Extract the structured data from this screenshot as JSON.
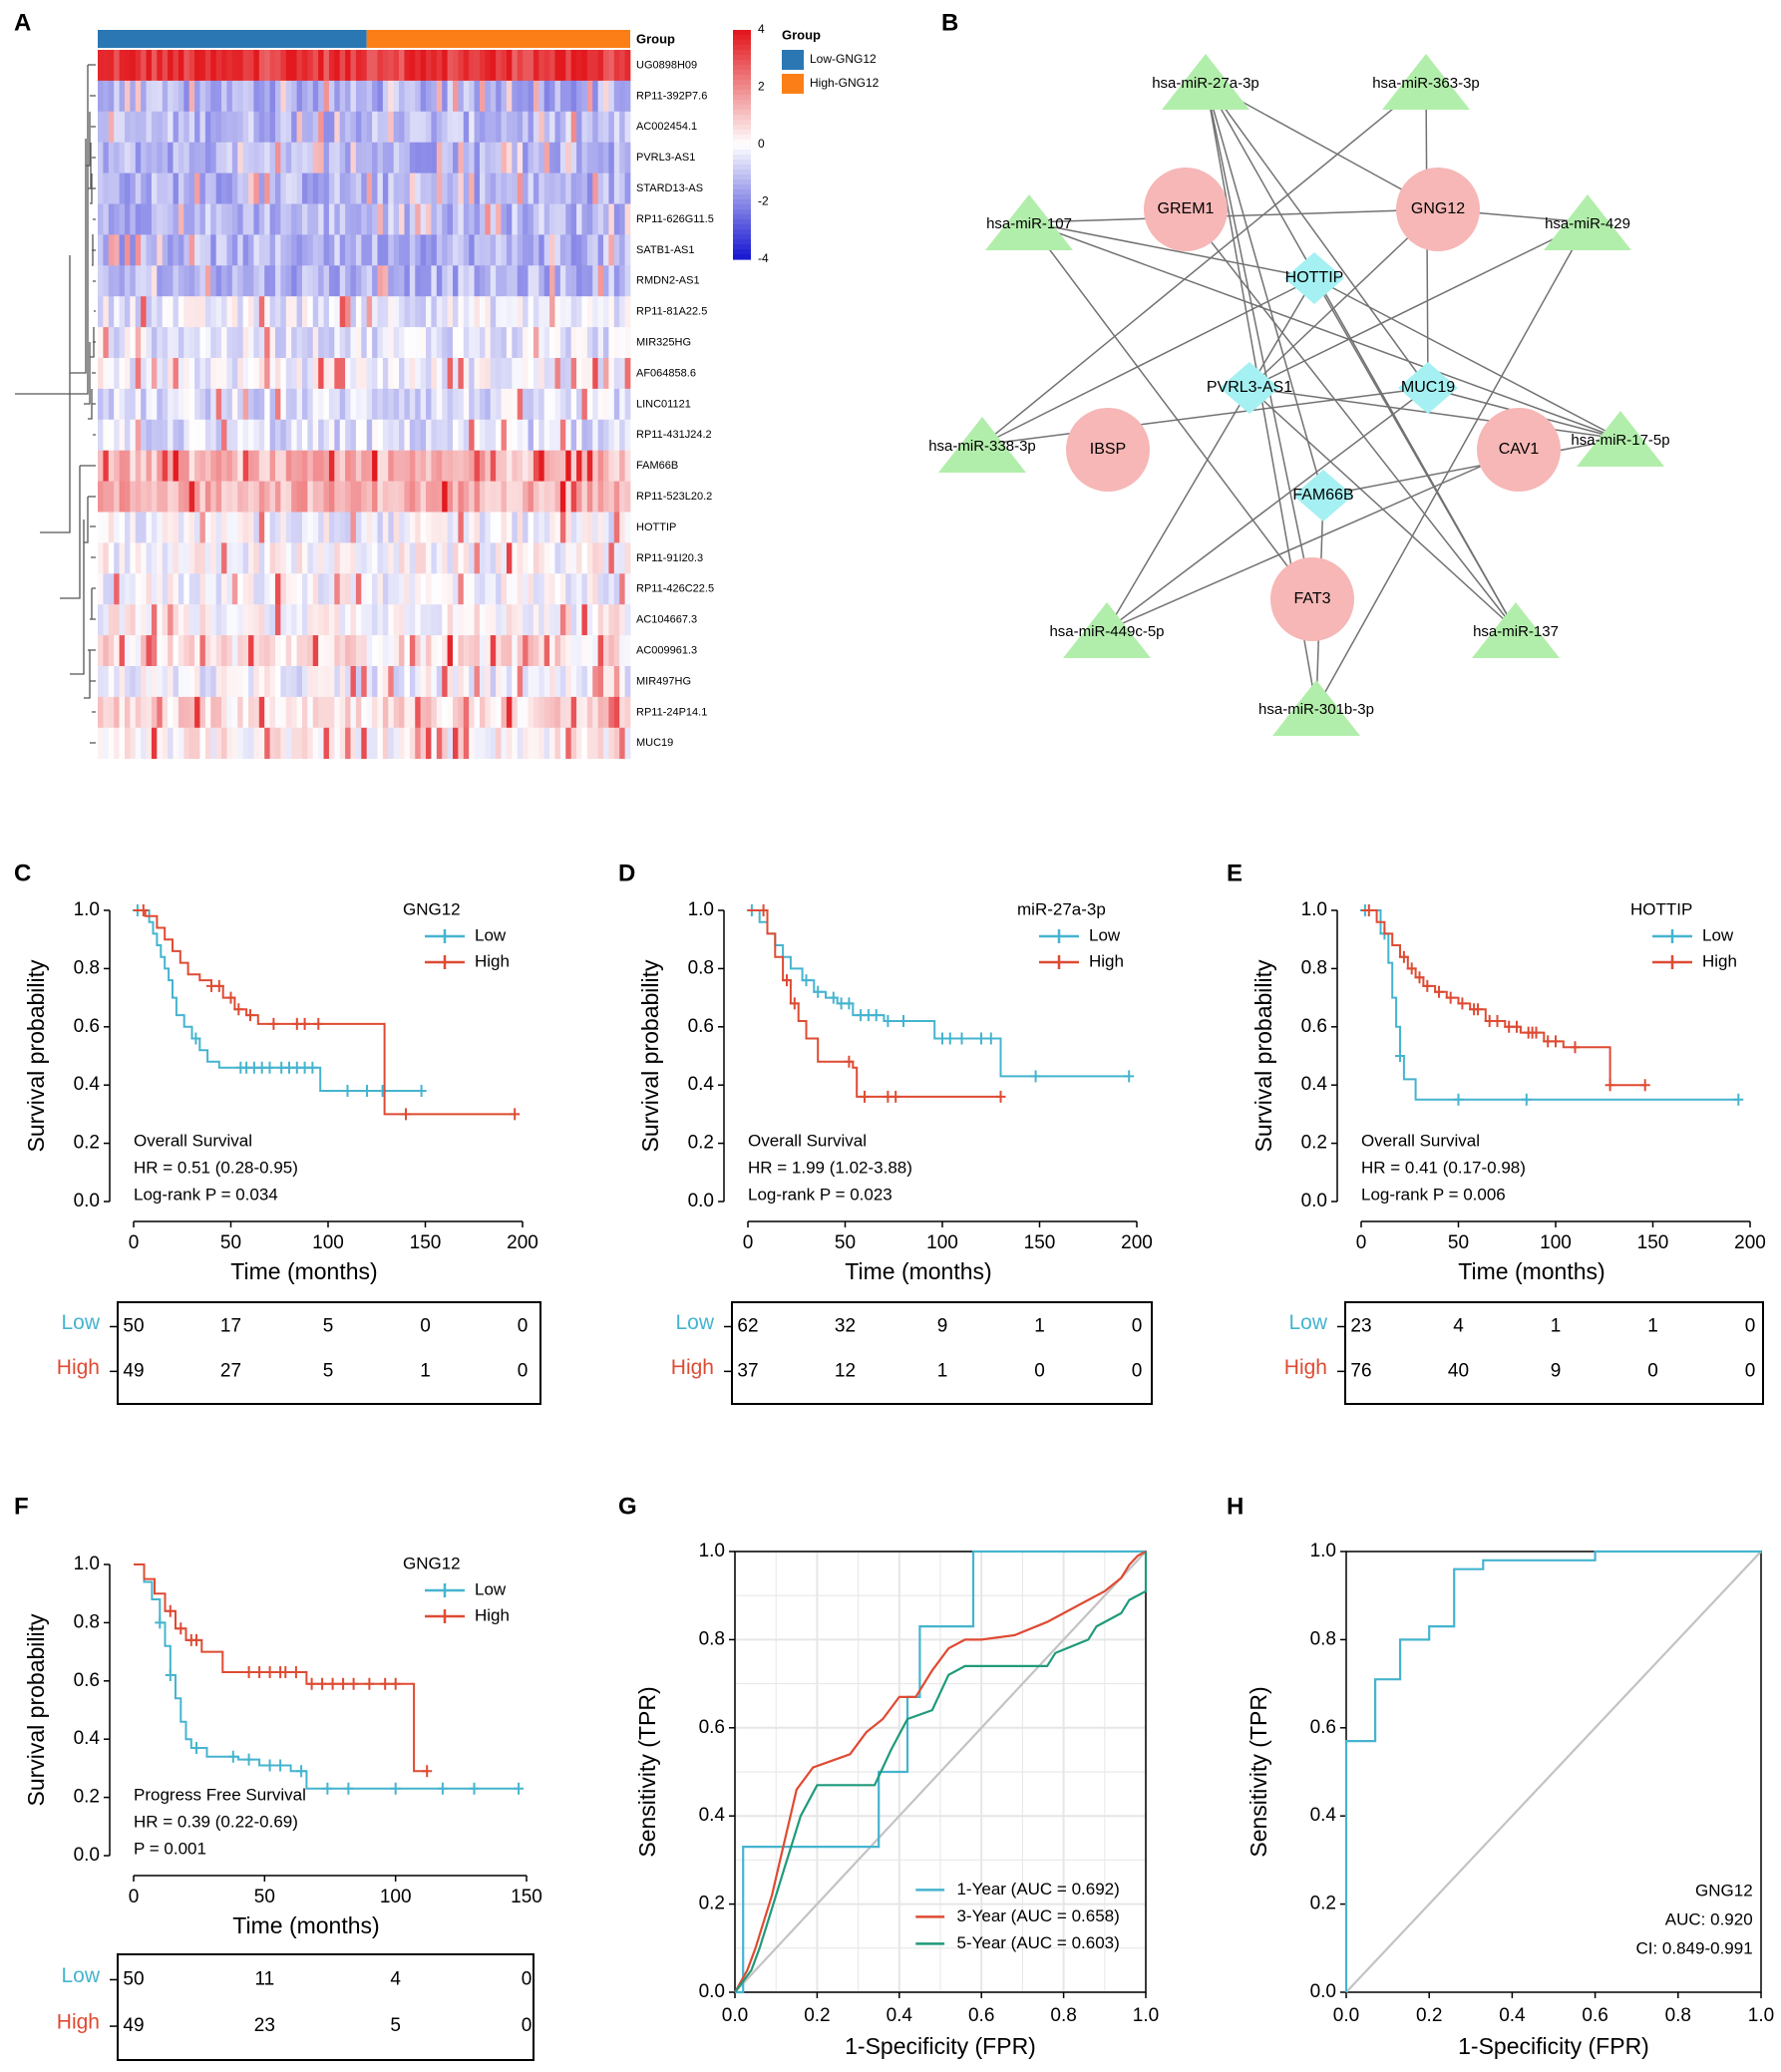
{
  "colors": {
    "low": "#45b4cf",
    "high": "#de4b33",
    "green": "#1f9a7a",
    "grey": "#c3c3c3",
    "mirna": "#b2eeab",
    "mrna": "#f6b7b6",
    "lnc": "#a5f0f2",
    "edge": "#727272",
    "bar_low": "#2a77b4",
    "bar_high": "#fb7f16"
  },
  "panel_labels": [
    "A",
    "B",
    "C",
    "D",
    "E",
    "F",
    "G",
    "H"
  ],
  "heatmap": {
    "group_title": "Group",
    "genes": [
      "UG0898H09",
      "RP11-392P7.6",
      "AC002454.1",
      "PVRL3-AS1",
      "STARD13-AS",
      "RP11-626G11.5",
      "SATB1-AS1",
      "RMDN2-AS1",
      "RP11-81A22.5",
      "MIR325HG",
      "AF064858.6",
      "LINC01121",
      "RP11-431J24.2",
      "FAM66B",
      "RP11-523L20.2",
      "HOTTIP",
      "RP11-91I20.3",
      "RP11-426C22.5",
      "AC104667.3",
      "AC009961.3",
      "MIR497HG",
      "RP11-24P14.1",
      "MUC19"
    ],
    "mean_expression": [
      3.5,
      -1.4,
      -1.2,
      -1.3,
      -1.3,
      -1.2,
      -1.3,
      -1.3,
      -0.3,
      -0.4,
      -0.2,
      -0.6,
      -0.6,
      1.2,
      1.4,
      -0.2,
      0.0,
      -0.1,
      0.1,
      0.5,
      -0.2,
      0.6,
      0.2
    ],
    "n_samples": 99,
    "n_low": 50,
    "scale_ticks": [
      4,
      2,
      0,
      -2,
      -4
    ],
    "legend_title": "Group",
    "legend_items": [
      "Low-GNG12",
      "High-GNG12"
    ]
  },
  "network": {
    "mirna": [
      "hsa-miR-27a-3p",
      "hsa-miR-363-3p",
      "hsa-miR-107",
      "hsa-miR-429",
      "hsa-miR-338-3p",
      "hsa-miR-17-5p",
      "hsa-miR-449c-5p",
      "hsa-miR-137",
      "hsa-miR-301b-3p"
    ],
    "mrna": [
      "GREM1",
      "GNG12",
      "IBSP",
      "CAV1",
      "FAT3"
    ],
    "lncrna": [
      "HOTTIP",
      "PVRL3-AS1",
      "MUC19",
      "FAM66B"
    ],
    "edges": [
      [
        "hsa-miR-27a-3p",
        "GNG12"
      ],
      [
        "hsa-miR-27a-3p",
        "MUC19"
      ],
      [
        "hsa-miR-27a-3p",
        "FAM66B"
      ],
      [
        "hsa-miR-27a-3p",
        "hsa-miR-137"
      ],
      [
        "hsa-miR-27a-3p",
        "FAT3"
      ],
      [
        "hsa-miR-27a-3p",
        "hsa-miR-301b-3p"
      ],
      [
        "hsa-miR-363-3p",
        "MUC19"
      ],
      [
        "hsa-miR-363-3p",
        "hsa-miR-338-3p"
      ],
      [
        "hsa-miR-107",
        "HOTTIP"
      ],
      [
        "hsa-miR-107",
        "FAT3"
      ],
      [
        "hsa-miR-107",
        "hsa-miR-17-5p"
      ],
      [
        "hsa-miR-107",
        "GNG12"
      ],
      [
        "GNG12",
        "hsa-miR-429"
      ],
      [
        "GNG12",
        "PVRL3-AS1"
      ],
      [
        "HOTTIP",
        "hsa-miR-17-5p"
      ],
      [
        "HOTTIP",
        "hsa-miR-449c-5p"
      ],
      [
        "HOTTIP",
        "hsa-miR-338-3p"
      ],
      [
        "HOTTIP",
        "hsa-miR-137"
      ],
      [
        "hsa-miR-429",
        "hsa-miR-301b-3p"
      ],
      [
        "hsa-miR-429",
        "PVRL3-AS1"
      ],
      [
        "hsa-miR-338-3p",
        "MUC19"
      ],
      [
        "MUC19",
        "hsa-miR-17-5p"
      ],
      [
        "MUC19",
        "hsa-miR-449c-5p"
      ],
      [
        "PVRL3-AS1",
        "hsa-miR-17-5p"
      ],
      [
        "hsa-miR-17-5p",
        "FAM66B"
      ],
      [
        "FAM66B",
        "hsa-miR-301b-3p"
      ],
      [
        "GREM1",
        "hsa-miR-137"
      ],
      [
        "CAV1",
        "hsa-miR-449c-5p"
      ],
      [
        "PVRL3-AS1",
        "hsa-miR-137"
      ]
    ]
  },
  "chart_data": [
    {
      "panel": "C",
      "type": "line",
      "subtype": "kaplan-meier",
      "ylabel": "Survival probability",
      "xlabel": "Time (months)",
      "xlim": [
        0,
        200
      ],
      "xticks": [
        0,
        50,
        100,
        150,
        200
      ],
      "ylim": [
        0,
        1
      ],
      "yticks": [
        "0.0",
        "0.2",
        "0.4",
        "0.6",
        "0.8",
        "1.0"
      ],
      "legend_title": "GNG12",
      "annotations": [
        "Overall Survival",
        "HR = 0.51 (0.28-0.95)",
        "Log-rank P = 0.034"
      ],
      "series": [
        {
          "name": "Low",
          "x": [
            0,
            8,
            10,
            12,
            14,
            16,
            18,
            20,
            22,
            26,
            30,
            34,
            38,
            44,
            66,
            96,
            148
          ],
          "y": [
            1.0,
            0.96,
            0.92,
            0.88,
            0.84,
            0.8,
            0.76,
            0.7,
            0.64,
            0.6,
            0.56,
            0.52,
            0.48,
            0.46,
            0.46,
            0.38,
            0.38
          ],
          "censors": [
            2,
            32,
            55,
            58,
            62,
            66,
            70,
            76,
            80,
            84,
            88,
            92,
            110,
            120,
            128,
            148
          ]
        },
        {
          "name": "High",
          "x": [
            0,
            6,
            12,
            16,
            20,
            24,
            28,
            34,
            40,
            46,
            52,
            58,
            64,
            100,
            129,
            196
          ],
          "y": [
            1.0,
            0.98,
            0.94,
            0.9,
            0.86,
            0.82,
            0.78,
            0.76,
            0.74,
            0.7,
            0.66,
            0.64,
            0.61,
            0.61,
            0.3,
            0.3
          ],
          "censors": [
            5,
            40,
            44,
            50,
            54,
            60,
            72,
            84,
            88,
            95,
            140,
            196
          ]
        }
      ],
      "risk_table": {
        "rows": [
          {
            "label": "Low",
            "values": [
              50,
              17,
              5,
              0,
              0
            ]
          },
          {
            "label": "High",
            "values": [
              49,
              27,
              5,
              1,
              0
            ]
          }
        ]
      }
    },
    {
      "panel": "D",
      "type": "line",
      "subtype": "kaplan-meier",
      "ylabel": "Survival probability",
      "xlabel": "Time (months)",
      "xlim": [
        0,
        200
      ],
      "xticks": [
        0,
        50,
        100,
        150,
        200
      ],
      "ylim": [
        0,
        1
      ],
      "yticks": [
        "0.0",
        "0.2",
        "0.4",
        "0.6",
        "0.8",
        "1.0"
      ],
      "legend_title": "miR-27a-3p",
      "annotations": [
        "Overall Survival",
        "HR = 1.99 (1.02-3.88)",
        "Log-rank P = 0.023"
      ],
      "series": [
        {
          "name": "Low",
          "x": [
            0,
            6,
            10,
            14,
            18,
            22,
            28,
            34,
            40,
            46,
            54,
            70,
            96,
            130,
            196
          ],
          "y": [
            1.0,
            0.96,
            0.92,
            0.88,
            0.84,
            0.8,
            0.76,
            0.72,
            0.7,
            0.68,
            0.64,
            0.62,
            0.56,
            0.43,
            0.43
          ],
          "censors": [
            2,
            30,
            36,
            44,
            48,
            52,
            58,
            62,
            66,
            72,
            80,
            100,
            104,
            110,
            120,
            125,
            148,
            196
          ]
        },
        {
          "name": "High",
          "x": [
            0,
            10,
            14,
            18,
            22,
            26,
            30,
            36,
            54,
            56,
            130
          ],
          "y": [
            1.0,
            0.92,
            0.84,
            0.76,
            0.68,
            0.62,
            0.56,
            0.48,
            0.46,
            0.36,
            0.36
          ],
          "censors": [
            8,
            20,
            24,
            52,
            60,
            72,
            76,
            130
          ]
        }
      ],
      "risk_table": {
        "rows": [
          {
            "label": "Low",
            "values": [
              62,
              32,
              9,
              1,
              0
            ]
          },
          {
            "label": "High",
            "values": [
              37,
              12,
              1,
              0,
              0
            ]
          }
        ]
      }
    },
    {
      "panel": "E",
      "type": "line",
      "subtype": "kaplan-meier",
      "ylabel": "Survival probability",
      "xlabel": "Time (months)",
      "xlim": [
        0,
        200
      ],
      "xticks": [
        0,
        50,
        100,
        150,
        200
      ],
      "ylim": [
        0,
        1
      ],
      "yticks": [
        "0.0",
        "0.2",
        "0.4",
        "0.6",
        "0.8",
        "1.0"
      ],
      "legend_title": "HOTTIP",
      "annotations": [
        "Overall Survival",
        "HR = 0.41 (0.17-0.98)",
        "Log-rank P = 0.006"
      ],
      "series": [
        {
          "name": "Low",
          "x": [
            0,
            10,
            14,
            16,
            18,
            20,
            22,
            28,
            194
          ],
          "y": [
            1.0,
            0.92,
            0.82,
            0.7,
            0.6,
            0.5,
            0.42,
            0.35,
            0.35
          ],
          "censors": [
            2,
            12,
            20,
            50,
            85,
            194
          ]
        },
        {
          "name": "High",
          "x": [
            0,
            8,
            12,
            16,
            20,
            24,
            28,
            32,
            38,
            44,
            50,
            56,
            64,
            74,
            82,
            94,
            104,
            128,
            130,
            146
          ],
          "y": [
            1.0,
            0.96,
            0.92,
            0.88,
            0.84,
            0.8,
            0.77,
            0.74,
            0.72,
            0.7,
            0.68,
            0.66,
            0.62,
            0.6,
            0.58,
            0.55,
            0.53,
            0.4,
            0.4,
            0.4
          ],
          "censors": [
            4,
            22,
            26,
            30,
            34,
            40,
            46,
            52,
            58,
            60,
            66,
            70,
            76,
            80,
            86,
            88,
            90,
            96,
            100,
            110,
            128,
            146
          ]
        }
      ],
      "risk_table": {
        "rows": [
          {
            "label": "Low",
            "values": [
              23,
              4,
              1,
              1,
              0
            ]
          },
          {
            "label": "High",
            "values": [
              76,
              40,
              9,
              0,
              0
            ]
          }
        ]
      }
    },
    {
      "panel": "F",
      "type": "line",
      "subtype": "kaplan-meier",
      "ylabel": "Survival probability",
      "xlabel": "Time (months)",
      "xlim": [
        0,
        150
      ],
      "xticks": [
        0,
        50,
        100,
        150
      ],
      "ylim": [
        0,
        1
      ],
      "yticks": [
        "0.0",
        "0.2",
        "0.4",
        "0.6",
        "0.8",
        "1.0"
      ],
      "legend_title": "GNG12",
      "annotations": [
        "Progress Free Survival",
        "HR = 0.39 (0.22-0.69)",
        "P = 0.001"
      ],
      "series": [
        {
          "name": "Low",
          "x": [
            0,
            4,
            7,
            10,
            12,
            14,
            16,
            18,
            20,
            22,
            28,
            40,
            48,
            60,
            66,
            147
          ],
          "y": [
            1.0,
            0.94,
            0.88,
            0.8,
            0.72,
            0.62,
            0.54,
            0.46,
            0.4,
            0.37,
            0.34,
            0.33,
            0.31,
            0.29,
            0.23,
            0.23
          ],
          "censors": [
            10,
            14,
            24,
            38,
            44,
            52,
            56,
            64,
            74,
            82,
            100,
            118,
            130,
            147
          ]
        },
        {
          "name": "High",
          "x": [
            0,
            4,
            8,
            12,
            16,
            20,
            26,
            34,
            60,
            66,
            107,
            112
          ],
          "y": [
            1.0,
            0.95,
            0.9,
            0.84,
            0.78,
            0.74,
            0.7,
            0.63,
            0.63,
            0.59,
            0.29,
            0.29
          ],
          "censors": [
            14,
            18,
            22,
            24,
            44,
            48,
            52,
            56,
            58,
            62,
            68,
            72,
            76,
            80,
            84,
            90,
            96,
            100,
            112
          ]
        }
      ],
      "risk_table": {
        "rows": [
          {
            "label": "Low",
            "values": [
              50,
              11,
              4,
              0
            ]
          },
          {
            "label": "High",
            "values": [
              49,
              23,
              5,
              0
            ]
          }
        ]
      }
    },
    {
      "panel": "G",
      "type": "line",
      "subtype": "roc",
      "xlabel": "1-Specificity (FPR)",
      "ylabel": "Sensitivity (TPR)",
      "xlim": [
        0,
        1
      ],
      "ylim": [
        0,
        1
      ],
      "ticks": [
        "0.0",
        "0.2",
        "0.4",
        "0.6",
        "0.8",
        "1.0"
      ],
      "grid": true,
      "series": [
        {
          "name": "1-Year (AUC = 0.692)",
          "x": [
            0.0,
            0.02,
            0.02,
            0.35,
            0.35,
            0.42,
            0.42,
            0.45,
            0.45,
            0.58,
            0.58,
            1.0
          ],
          "y": [
            0.0,
            0.0,
            0.33,
            0.33,
            0.5,
            0.5,
            0.67,
            0.67,
            0.83,
            0.83,
            1.0,
            1.0
          ]
        },
        {
          "name": "3-Year (AUC = 0.658)",
          "x": [
            0.0,
            0.03,
            0.05,
            0.07,
            0.09,
            0.11,
            0.13,
            0.15,
            0.19,
            0.28,
            0.32,
            0.36,
            0.4,
            0.44,
            0.48,
            0.52,
            0.56,
            0.6,
            0.68,
            0.76,
            0.8,
            0.84,
            0.86,
            0.9,
            0.94,
            0.96,
            0.98,
            1.0
          ],
          "y": [
            0.0,
            0.05,
            0.1,
            0.16,
            0.22,
            0.3,
            0.38,
            0.46,
            0.51,
            0.54,
            0.59,
            0.62,
            0.67,
            0.67,
            0.73,
            0.78,
            0.8,
            0.8,
            0.81,
            0.84,
            0.86,
            0.88,
            0.89,
            0.91,
            0.94,
            0.97,
            0.99,
            1.0
          ]
        },
        {
          "name": "5-Year (AUC = 0.603)",
          "x": [
            0.0,
            0.04,
            0.06,
            0.08,
            0.1,
            0.12,
            0.14,
            0.16,
            0.2,
            0.34,
            0.38,
            0.42,
            0.48,
            0.52,
            0.56,
            0.76,
            0.78,
            0.86,
            0.88,
            0.94,
            0.96,
            1.0,
            1.0
          ],
          "y": [
            0.0,
            0.05,
            0.1,
            0.16,
            0.22,
            0.28,
            0.34,
            0.4,
            0.47,
            0.47,
            0.55,
            0.62,
            0.64,
            0.72,
            0.74,
            0.74,
            0.77,
            0.8,
            0.83,
            0.86,
            0.89,
            0.91,
            1.0
          ]
        },
        {
          "name": "reference",
          "x": [
            0,
            1
          ],
          "y": [
            0,
            1
          ]
        }
      ]
    },
    {
      "panel": "H",
      "type": "line",
      "subtype": "roc",
      "xlabel": "1-Specificity (FPR)",
      "ylabel": "Sensitivity (TPR)",
      "xlim": [
        0,
        1
      ],
      "ylim": [
        0,
        1
      ],
      "ticks": [
        "0.0",
        "0.2",
        "0.4",
        "0.6",
        "0.8",
        "1.0"
      ],
      "grid": false,
      "annotations": [
        "GNG12",
        "AUC: 0.920",
        "CI: 0.849-0.991"
      ],
      "series": [
        {
          "name": "GNG12",
          "x": [
            0.0,
            0.0,
            0.07,
            0.07,
            0.13,
            0.13,
            0.2,
            0.2,
            0.26,
            0.26,
            0.33,
            0.33,
            0.6,
            0.6,
            1.0
          ],
          "y": [
            0.0,
            0.57,
            0.57,
            0.71,
            0.71,
            0.8,
            0.8,
            0.83,
            0.83,
            0.96,
            0.96,
            0.98,
            0.98,
            1.0,
            1.0
          ]
        },
        {
          "name": "reference",
          "x": [
            0,
            1
          ],
          "y": [
            0,
            1
          ]
        }
      ]
    }
  ]
}
